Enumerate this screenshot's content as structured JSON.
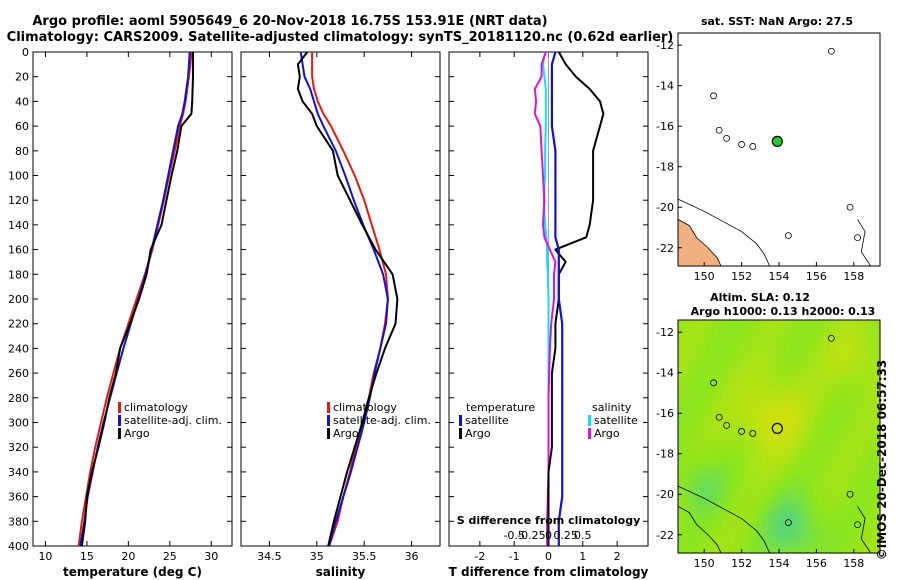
{
  "title": {
    "line1": "Argo profile: aoml 5905649_6 20-Nov-2018 16.75S 153.91E (NRT data)",
    "line2": "Climatology: CARS2009. Satellite-adjusted climatology: synTS_20181120.nc (0.62d earlier)"
  },
  "colors": {
    "climatology": "#e8190f",
    "satellite": "#1010d8",
    "argo": "#000000",
    "sat_salinity": "#10e0f0",
    "argo_salinity": "#e010e0"
  },
  "chart_data": [
    {
      "type": "line",
      "id": "temperature",
      "xlabel": "temperature (deg C)",
      "ylabel": "",
      "xlim": [
        8.5,
        32.5
      ],
      "ylim": [
        400,
        0
      ],
      "xticks": [
        "10",
        "15",
        "20",
        "25",
        "30"
      ],
      "yticks": [
        "0",
        "20",
        "40",
        "60",
        "80",
        "100",
        "120",
        "140",
        "160",
        "180",
        "200",
        "220",
        "240",
        "260",
        "280",
        "300",
        "320",
        "340",
        "360",
        "380",
        "400"
      ],
      "depth": [
        0,
        10,
        20,
        40,
        50,
        60,
        80,
        100,
        120,
        140,
        160,
        180,
        200,
        220,
        240,
        260,
        280,
        300,
        320,
        340,
        360,
        380,
        400
      ],
      "series": [
        {
          "name": "climatology",
          "values": [
            27.6,
            27.5,
            27.3,
            26.9,
            26.6,
            26.2,
            25.6,
            24.9,
            24.3,
            23.6,
            22.9,
            22.0,
            21.0,
            20.0,
            19.0,
            18.2,
            17.4,
            16.7,
            16.0,
            15.4,
            14.9,
            14.4,
            14.0
          ]
        },
        {
          "name": "satellite-adj. clim.",
          "values": [
            27.4,
            27.3,
            27.2,
            26.8,
            26.5,
            26.0,
            25.4,
            24.8,
            24.2,
            23.5,
            22.8,
            22.1,
            21.2,
            20.3,
            19.4,
            18.6,
            17.8,
            17.0,
            16.3,
            15.7,
            15.1,
            14.7,
            14.2
          ]
        },
        {
          "name": "Argo",
          "values": [
            27.8,
            27.8,
            27.8,
            27.7,
            27.6,
            26.4,
            25.9,
            25.2,
            24.6,
            24.0,
            22.7,
            22.2,
            21.3,
            20.2,
            19.0,
            18.5,
            17.7,
            17.1,
            16.4,
            15.6,
            15.0,
            14.8,
            14.4
          ]
        }
      ],
      "legend": [
        "climatology",
        "satellite-adj. clim.",
        "Argo"
      ]
    },
    {
      "type": "line",
      "id": "salinity",
      "xlabel": "salinity",
      "xlim": [
        34.2,
        36.3
      ],
      "ylim": [
        400,
        0
      ],
      "xticks": [
        "34.5",
        "35",
        "35.5",
        "36"
      ],
      "depth": [
        0,
        10,
        20,
        30,
        40,
        50,
        60,
        80,
        100,
        120,
        140,
        160,
        180,
        200,
        220,
        240,
        260,
        280,
        300,
        320,
        340,
        360,
        380,
        400
      ],
      "series": [
        {
          "name": "climatology",
          "values": [
            34.95,
            34.95,
            34.95,
            34.97,
            35.01,
            35.07,
            35.15,
            35.28,
            35.4,
            35.5,
            35.58,
            35.66,
            35.73,
            35.75,
            35.72,
            35.67,
            35.6,
            35.55,
            35.48,
            35.41,
            35.35,
            35.28,
            35.22,
            35.13
          ]
        },
        {
          "name": "satellite-adj. clim.",
          "values": [
            34.83,
            34.85,
            34.87,
            34.93,
            34.97,
            35.01,
            35.07,
            35.2,
            35.3,
            35.39,
            35.49,
            35.6,
            35.7,
            35.75,
            35.73,
            35.67,
            35.61,
            35.56,
            35.5,
            35.43,
            35.36,
            35.28,
            35.2,
            35.13
          ]
        },
        {
          "name": "Argo",
          "values": [
            34.9,
            34.8,
            34.82,
            34.8,
            34.85,
            34.95,
            35.0,
            35.17,
            35.22,
            35.35,
            35.48,
            35.62,
            35.8,
            35.85,
            35.83,
            35.72,
            35.63,
            35.55,
            35.48,
            35.4,
            35.32,
            35.25,
            35.18,
            35.12
          ]
        }
      ],
      "legend": [
        "climatology",
        "satellite-adj. clim.",
        "Argo"
      ]
    },
    {
      "type": "line",
      "id": "difference",
      "xlabel": "T difference from climatology",
      "top_xlabel": "S difference from climatology",
      "xlim": [
        -2.9,
        2.9
      ],
      "ylim": [
        400,
        0
      ],
      "xticks": [
        "-2",
        "-1",
        "0",
        "1",
        "2"
      ],
      "top_xticks": [
        "-0.5",
        "-0.25",
        "0",
        "0.25",
        "0.5"
      ],
      "depth": [
        0,
        10,
        20,
        30,
        40,
        50,
        60,
        80,
        100,
        120,
        140,
        150,
        160,
        170,
        180,
        200,
        220,
        240,
        260,
        280,
        300,
        320,
        340,
        360,
        380,
        400
      ],
      "series": [
        {
          "name": "temperature satellite",
          "values": [
            0.2,
            0.1,
            0.1,
            0.1,
            0.1,
            0.1,
            0.1,
            0.2,
            0.2,
            0.2,
            0.2,
            0.2,
            0.3,
            0.3,
            0.3,
            0.3,
            0.4,
            0.4,
            0.4,
            0.4,
            0.4,
            0.4,
            0.4,
            0.4,
            0.3,
            0.3
          ]
        },
        {
          "name": "temperature Argo",
          "values": [
            0.3,
            0.5,
            0.8,
            1.2,
            1.5,
            1.6,
            1.5,
            1.3,
            1.3,
            1.3,
            1.2,
            1.1,
            0.2,
            0.5,
            0.3,
            0.3,
            0.2,
            0.2,
            0.1,
            0.1,
            0.1,
            0.1,
            0.0,
            0.0,
            0.0,
            0.0
          ]
        },
        {
          "name": "salinity satellite",
          "values": [
            -0.05,
            -0.08,
            -0.06,
            -0.04,
            -0.04,
            -0.04,
            -0.04,
            -0.05,
            -0.05,
            -0.07,
            -0.05,
            -0.03,
            -0.02,
            -0.02,
            -0.01,
            0.0,
            0.0,
            0.0,
            0.0,
            0.0,
            0.0,
            0.0,
            0.0,
            0.0,
            0.0,
            0.0
          ]
        },
        {
          "name": "salinity Argo",
          "values": [
            -0.04,
            -0.1,
            -0.1,
            -0.2,
            -0.18,
            -0.2,
            -0.12,
            -0.1,
            -0.08,
            -0.06,
            -0.08,
            -0.06,
            0.02,
            0.1,
            0.08,
            0.08,
            0.04,
            0.02,
            0.01,
            0.0,
            0.0,
            0.0,
            0.0,
            -0.01,
            -0.02,
            -0.02
          ]
        }
      ],
      "legend_temperature": [
        "temperature",
        "satellite",
        "Argo"
      ],
      "legend_salinity": [
        "salinity",
        "satellite",
        "Argo"
      ]
    },
    {
      "type": "scatter",
      "id": "sst-map",
      "title": "sat. SST: NaN Argo: 27.5",
      "xlim": [
        148.6,
        159.4
      ],
      "ylim": [
        -22.9,
        -11.4
      ],
      "xticks": [
        "150",
        "152",
        "154",
        "156",
        "158"
      ],
      "yticks": [
        "-12",
        "-14",
        "-16",
        "-18",
        "-20",
        "-22"
      ],
      "float_position": {
        "lon": 153.91,
        "lat": -16.75
      }
    },
    {
      "type": "heatmap",
      "id": "sla-map",
      "title1": "Altim. SLA: 0.12",
      "title2": "Argo h1000: 0.13 h2000: 0.13",
      "xlim": [
        148.6,
        159.4
      ],
      "ylim": [
        -22.9,
        -11.4
      ],
      "xticks": [
        "150",
        "152",
        "154",
        "156",
        "158"
      ],
      "yticks": [
        "-12",
        "-14",
        "-16",
        "-18",
        "-20",
        "-22"
      ],
      "float_position": {
        "lon": 153.91,
        "lat": -16.75
      }
    }
  ],
  "credit": "©IMOS 20-Dec-2018 06:57:33"
}
